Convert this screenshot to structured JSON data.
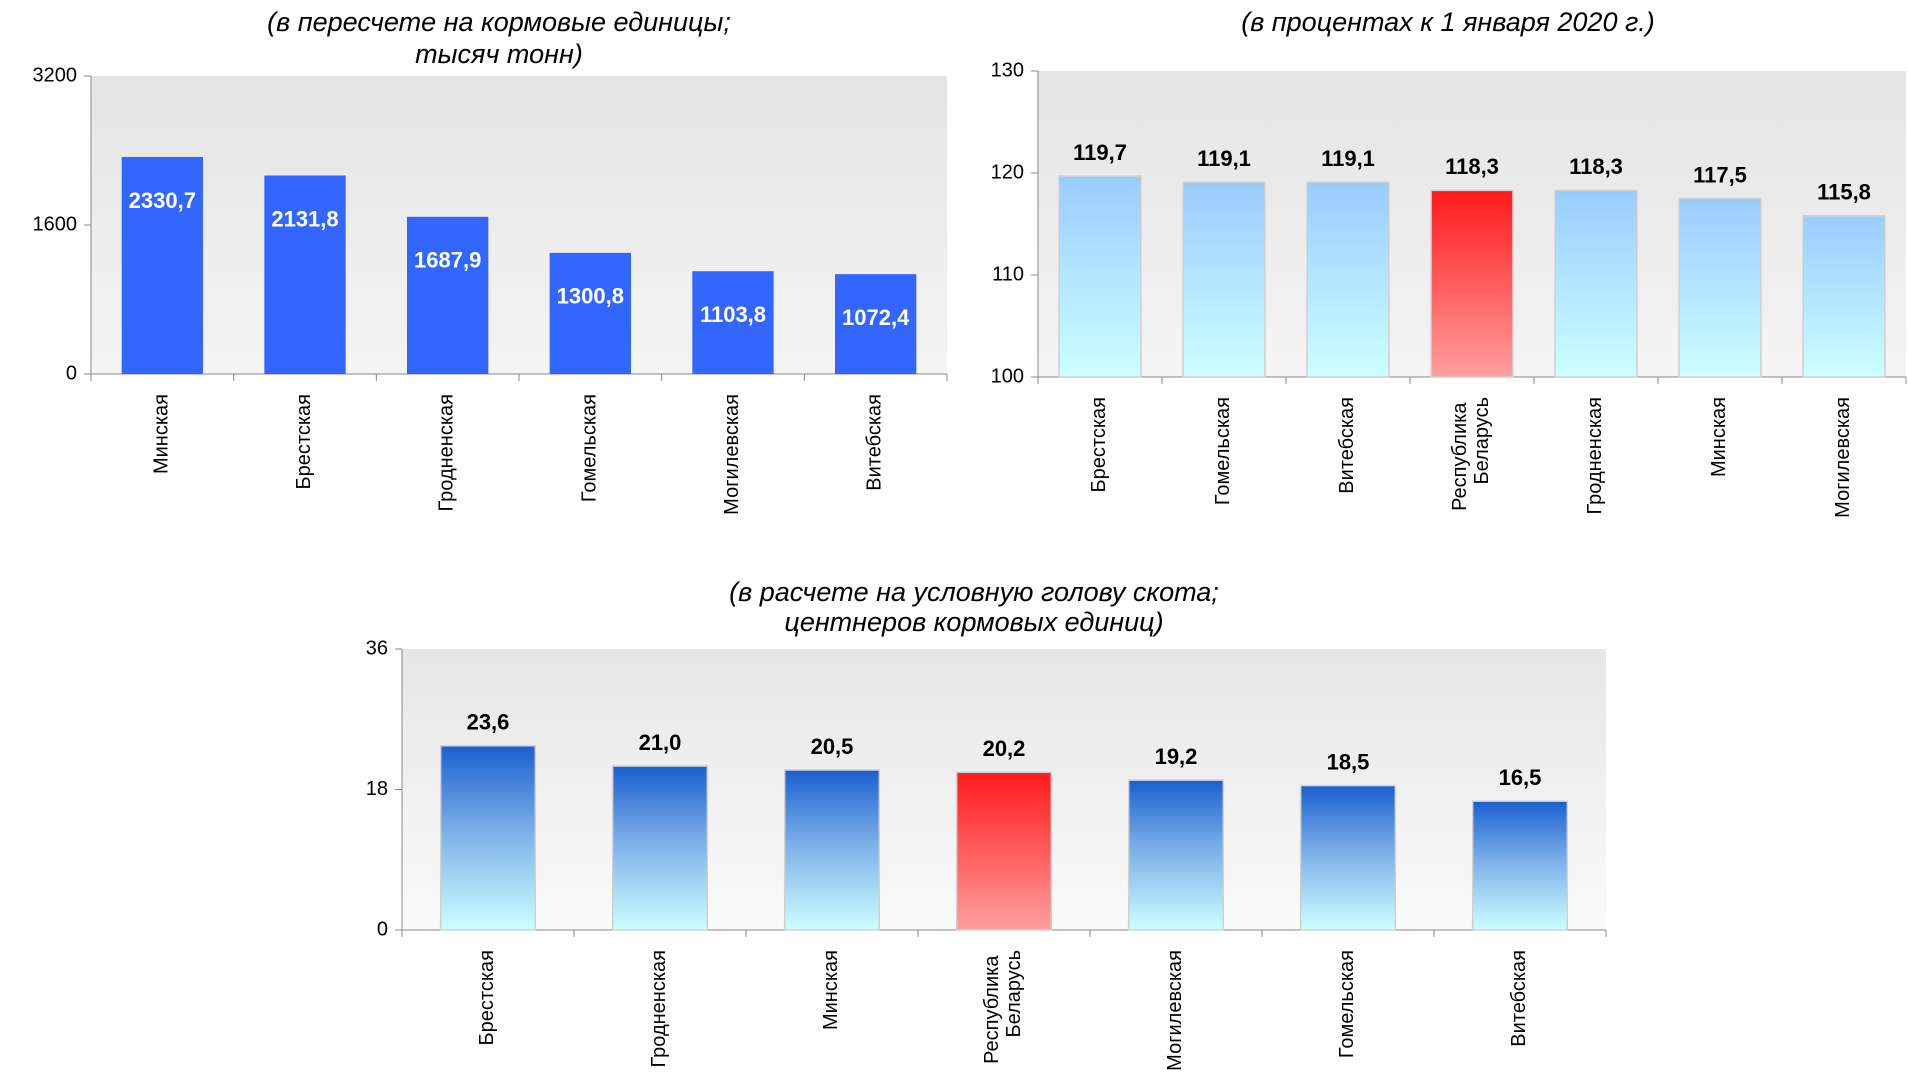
{
  "chart_data": [
    {
      "type": "bar",
      "title": [
        "(в пересчете на кормовые единицы;",
        "тысяч тонн)"
      ],
      "categories": [
        "Минская",
        "Брестская",
        "Гродненская",
        "Гомельская",
        "Могилевская",
        "Витебская"
      ],
      "values": [
        2330.7,
        2131.8,
        1687.9,
        1300.8,
        1103.8,
        1072.4
      ],
      "value_labels": [
        "2330,7",
        "2131,8",
        "1687,9",
        "1300,8",
        "1103,8",
        "1072,4"
      ],
      "colors": [
        "#3366ff",
        "#3366ff",
        "#3366ff",
        "#3366ff",
        "#3366ff",
        "#3366ff"
      ],
      "ylim": [
        0,
        3200
      ],
      "yticks": [
        0,
        1600,
        3200
      ],
      "label_position": "inside"
    },
    {
      "type": "bar",
      "title": [
        "(в процентах к 1 января 2020 г.)"
      ],
      "categories": [
        "Брестская",
        "Гомельская",
        "Витебская",
        "Республика Беларусь",
        "Гродненская",
        "Минская",
        "Могилевская"
      ],
      "values": [
        119.7,
        119.1,
        119.1,
        118.3,
        118.3,
        117.5,
        115.8
      ],
      "value_labels": [
        "119,7",
        "119,1",
        "119,1",
        "118,3",
        "118,3",
        "117,5",
        "115,8"
      ],
      "colors": [
        "light-blue",
        "light-blue",
        "light-blue",
        "red",
        "light-blue",
        "light-blue",
        "light-blue"
      ],
      "ylim": [
        100,
        130
      ],
      "yticks": [
        100,
        110,
        120,
        130
      ],
      "label_position": "above"
    },
    {
      "type": "bar",
      "title": [
        "(в расчете на условную голову скота;",
        "центнеров кормовых единиц)"
      ],
      "categories": [
        "Брестская",
        "Гродненская",
        "Минская",
        "Республика Беларусь",
        "Могилевская",
        "Гомельская",
        "Витебская"
      ],
      "values": [
        23.6,
        21.0,
        20.5,
        20.2,
        19.2,
        18.5,
        16.5
      ],
      "value_labels": [
        "23,6",
        "21,0",
        "20,5",
        "20,2",
        "19,2",
        "18,5",
        "16,5"
      ],
      "colors": [
        "dark-blue",
        "dark-blue",
        "dark-blue",
        "red",
        "dark-blue",
        "dark-blue",
        "dark-blue"
      ],
      "ylim": [
        0,
        36
      ],
      "yticks": [
        0,
        18,
        36
      ],
      "label_position": "above"
    }
  ]
}
